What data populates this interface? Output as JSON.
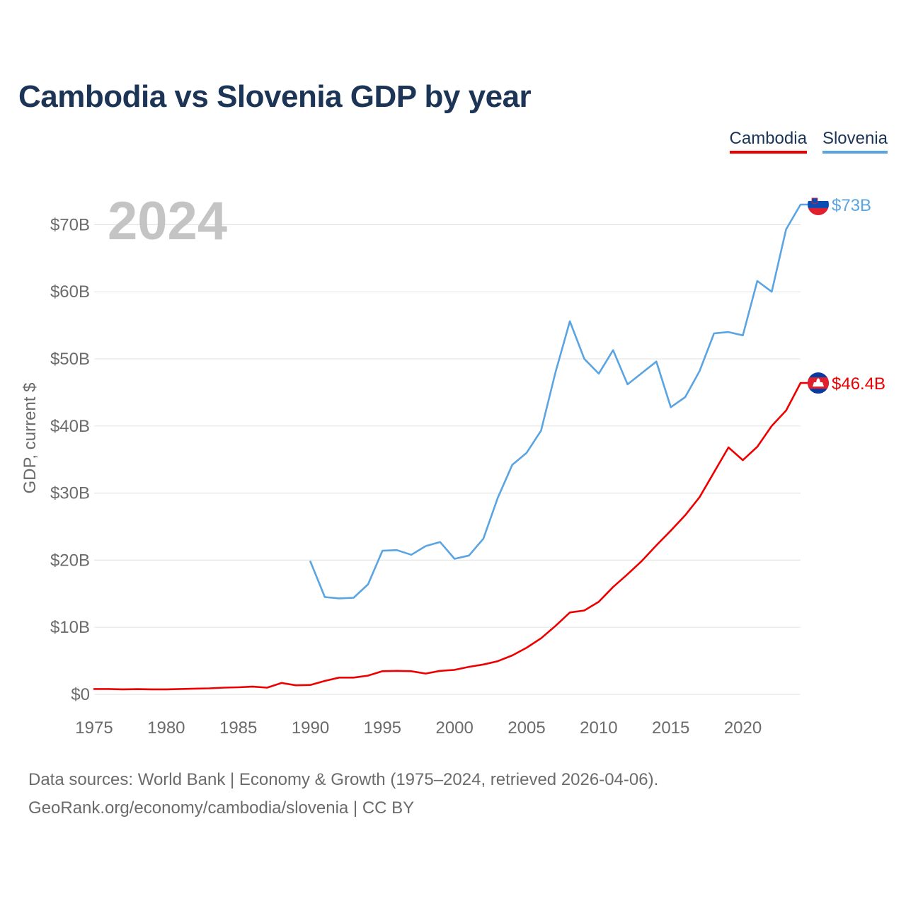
{
  "title": "Cambodia vs Slovenia GDP by year",
  "legend": {
    "cambodia": "Cambodia",
    "slovenia": "Slovenia"
  },
  "colors": {
    "cambodia": "#ee0000",
    "slovenia": "#5ba4e2",
    "title": "#1c3557"
  },
  "year_watermark": "2024",
  "footer": {
    "line1": "Data sources: World Bank | Economy & Growth (1975–2024, retrieved 2026-04-06).",
    "line2": "GeoRank.org/economy/cambodia/slovenia | CC BY"
  },
  "chart_data": {
    "type": "line",
    "title": "Cambodia vs Slovenia GDP by year",
    "xlabel": "",
    "ylabel": "GDP, current $",
    "xlim": [
      1975,
      2024
    ],
    "ylim": [
      0,
      70
    ],
    "y_unit": "billion US$",
    "x_ticks": [
      1975,
      1980,
      1985,
      1990,
      1995,
      2000,
      2005,
      2010,
      2015,
      2020
    ],
    "y_ticks": [
      0,
      10,
      20,
      30,
      40,
      50,
      60,
      70
    ],
    "y_tick_labels": [
      "$0",
      "$10B",
      "$20B",
      "$30B",
      "$40B",
      "$50B",
      "$60B",
      "$70B"
    ],
    "grid": true,
    "legend_position": "top-right",
    "series": [
      {
        "name": "Cambodia",
        "end_label": "$46.4B",
        "points": [
          [
            1975,
            0.8
          ],
          [
            1976,
            0.8
          ],
          [
            1977,
            0.75
          ],
          [
            1978,
            0.78
          ],
          [
            1979,
            0.75
          ],
          [
            1980,
            0.75
          ],
          [
            1981,
            0.8
          ],
          [
            1982,
            0.85
          ],
          [
            1983,
            0.9
          ],
          [
            1984,
            1.0
          ],
          [
            1985,
            1.05
          ],
          [
            1986,
            1.15
          ],
          [
            1987,
            1.0
          ],
          [
            1988,
            1.7
          ],
          [
            1989,
            1.35
          ],
          [
            1990,
            1.4
          ],
          [
            1991,
            2.0
          ],
          [
            1992,
            2.5
          ],
          [
            1993,
            2.5
          ],
          [
            1994,
            2.8
          ],
          [
            1995,
            3.45
          ],
          [
            1996,
            3.5
          ],
          [
            1997,
            3.45
          ],
          [
            1998,
            3.1
          ],
          [
            1999,
            3.5
          ],
          [
            2000,
            3.65
          ],
          [
            2001,
            4.1
          ],
          [
            2002,
            4.45
          ],
          [
            2003,
            4.95
          ],
          [
            2004,
            5.8
          ],
          [
            2005,
            6.95
          ],
          [
            2006,
            8.35
          ],
          [
            2007,
            10.2
          ],
          [
            2008,
            12.2
          ],
          [
            2009,
            12.5
          ],
          [
            2010,
            13.8
          ],
          [
            2011,
            16.0
          ],
          [
            2012,
            17.9
          ],
          [
            2013,
            19.9
          ],
          [
            2014,
            22.2
          ],
          [
            2015,
            24.4
          ],
          [
            2016,
            26.7
          ],
          [
            2017,
            29.4
          ],
          [
            2018,
            33.1
          ],
          [
            2019,
            36.8
          ],
          [
            2020,
            34.9
          ],
          [
            2021,
            36.9
          ],
          [
            2022,
            40.0
          ],
          [
            2023,
            42.3
          ],
          [
            2024,
            46.4
          ]
        ]
      },
      {
        "name": "Slovenia",
        "end_label": "$73B",
        "points": [
          [
            1990,
            19.8
          ],
          [
            1991,
            14.5
          ],
          [
            1992,
            14.3
          ],
          [
            1993,
            14.4
          ],
          [
            1994,
            16.4
          ],
          [
            1995,
            21.4
          ],
          [
            1996,
            21.5
          ],
          [
            1997,
            20.8
          ],
          [
            1998,
            22.1
          ],
          [
            1999,
            22.7
          ],
          [
            2000,
            20.2
          ],
          [
            2001,
            20.7
          ],
          [
            2002,
            23.2
          ],
          [
            2003,
            29.3
          ],
          [
            2004,
            34.2
          ],
          [
            2005,
            36.0
          ],
          [
            2006,
            39.3
          ],
          [
            2007,
            48.0
          ],
          [
            2008,
            55.6
          ],
          [
            2009,
            50.0
          ],
          [
            2010,
            47.8
          ],
          [
            2011,
            51.3
          ],
          [
            2012,
            46.2
          ],
          [
            2013,
            47.9
          ],
          [
            2014,
            49.6
          ],
          [
            2015,
            42.8
          ],
          [
            2016,
            44.3
          ],
          [
            2017,
            48.2
          ],
          [
            2018,
            53.8
          ],
          [
            2019,
            54.0
          ],
          [
            2020,
            53.5
          ],
          [
            2021,
            61.6
          ],
          [
            2022,
            60.0
          ],
          [
            2023,
            69.3
          ],
          [
            2024,
            73.0
          ]
        ]
      }
    ]
  }
}
